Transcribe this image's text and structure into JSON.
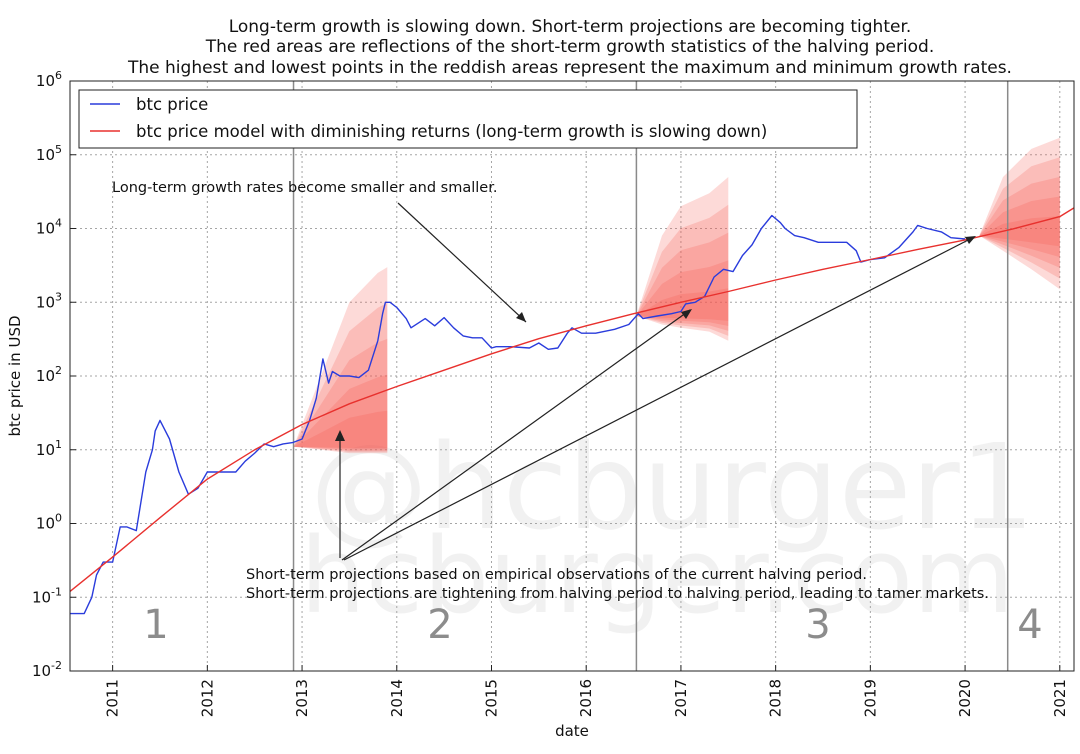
{
  "title_lines": [
    "Long-term growth is slowing down. Short-term projections are becoming tighter.",
    "The red areas are reflections of the short-term growth statistics of the halving period.",
    "The highest and lowest points in the reddish areas represent the maximum and minimum growth rates."
  ],
  "watermark": [
    "@hcburger1",
    "hcburger.com"
  ],
  "annotations": {
    "long_term": "Long-term growth rates become smaller and smaller.",
    "short_term_1": "Short-term projections based on empirical observations of the current halving period.",
    "short_term_2": "Short-term projections are tightening from halving period to halving period, leading to tamer markets."
  },
  "period_labels": [
    "1",
    "2",
    "3",
    "4"
  ],
  "colors": {
    "price": "#2a3cdc",
    "model": "#e8312e",
    "band": "#f4564f"
  },
  "chart_data": {
    "type": "line",
    "title": "Long-term growth is slowing down. Short-term projections are becoming tighter. The red areas are reflections of the short-term growth statistics of the halving period. The highest and lowest points in the reddish areas represent the maximum and minimum growth rates.",
    "xlabel": "date",
    "ylabel": "btc price in USD",
    "y_scale": "log",
    "ylim": [
      0.01,
      1000000
    ],
    "xlim": [
      2010.55,
      2021.15
    ],
    "x_ticks": [
      "2011",
      "2012",
      "2013",
      "2014",
      "2015",
      "2016",
      "2017",
      "2018",
      "2019",
      "2020",
      "2021"
    ],
    "y_ticks": [
      {
        "base": "10",
        "exp": "-2"
      },
      {
        "base": "10",
        "exp": "-1"
      },
      {
        "base": "10",
        "exp": "0"
      },
      {
        "base": "10",
        "exp": "1"
      },
      {
        "base": "10",
        "exp": "2"
      },
      {
        "base": "10",
        "exp": "3"
      },
      {
        "base": "10",
        "exp": "4"
      },
      {
        "base": "10",
        "exp": "5"
      },
      {
        "base": "10",
        "exp": "6"
      }
    ],
    "grid": true,
    "legend_position": "top-left",
    "halving_dates": [
      2012.91,
      2016.53,
      2020.45
    ],
    "series": [
      {
        "name": "btc price",
        "x": [
          2010.55,
          2010.6,
          2010.7,
          2010.78,
          2010.83,
          2010.9,
          2011.0,
          2011.08,
          2011.15,
          2011.25,
          2011.35,
          2011.42,
          2011.45,
          2011.5,
          2011.6,
          2011.7,
          2011.8,
          2011.9,
          2012.0,
          2012.1,
          2012.2,
          2012.3,
          2012.4,
          2012.5,
          2012.6,
          2012.7,
          2012.8,
          2012.9,
          2013.0,
          2013.08,
          2013.15,
          2013.22,
          2013.28,
          2013.32,
          2013.4,
          2013.5,
          2013.6,
          2013.7,
          2013.8,
          2013.85,
          2013.88,
          2013.93,
          2014.0,
          2014.1,
          2014.15,
          2014.3,
          2014.4,
          2014.5,
          2014.6,
          2014.7,
          2014.8,
          2014.9,
          2015.0,
          2015.05,
          2015.2,
          2015.4,
          2015.5,
          2015.6,
          2015.7,
          2015.8,
          2015.85,
          2015.95,
          2016.1,
          2016.3,
          2016.45,
          2016.55,
          2016.6,
          2016.75,
          2016.9,
          2017.0,
          2017.05,
          2017.15,
          2017.25,
          2017.35,
          2017.45,
          2017.55,
          2017.65,
          2017.75,
          2017.85,
          2017.96,
          2018.05,
          2018.1,
          2018.2,
          2018.3,
          2018.45,
          2018.6,
          2018.75,
          2018.85,
          2018.9,
          2019.0,
          2019.15,
          2019.3,
          2019.45,
          2019.5,
          2019.6,
          2019.75,
          2019.85,
          2020.0
        ],
        "y": [
          0.06,
          0.06,
          0.06,
          0.1,
          0.2,
          0.3,
          0.3,
          0.9,
          0.9,
          0.8,
          5,
          10,
          18,
          25,
          14,
          5,
          2.5,
          3,
          5,
          5,
          5,
          5,
          7,
          9,
          12,
          11,
          12,
          12.5,
          14,
          25,
          50,
          170,
          80,
          115,
          100,
          100,
          95,
          120,
          300,
          700,
          1000,
          1000,
          850,
          600,
          450,
          600,
          480,
          620,
          450,
          350,
          330,
          330,
          240,
          250,
          250,
          240,
          280,
          230,
          240,
          380,
          450,
          380,
          380,
          430,
          500,
          700,
          600,
          650,
          700,
          750,
          950,
          1000,
          1200,
          2200,
          2800,
          2600,
          4300,
          6000,
          10000,
          15000,
          12000,
          10000,
          8000,
          7500,
          6500,
          6500,
          6500,
          5000,
          3500,
          3800,
          4000,
          5500,
          9000,
          11000,
          10000,
          9000,
          7500,
          7200
        ]
      },
      {
        "name": "btc price model with diminishing returns (long-term growth is slowing down)",
        "x": [
          2010.55,
          2011,
          2011.5,
          2012,
          2012.5,
          2013,
          2013.5,
          2014,
          2014.5,
          2015,
          2015.5,
          2016,
          2016.5,
          2017,
          2017.5,
          2018,
          2018.5,
          2019,
          2019.5,
          2020,
          2020.5,
          2021,
          2021.15
        ],
        "y": [
          0.12,
          0.35,
          1.2,
          4,
          10,
          22,
          42,
          72,
          120,
          200,
          320,
          480,
          700,
          1000,
          1400,
          2000,
          2800,
          3800,
          5200,
          7000,
          9800,
          14500,
          19000
        ]
      }
    ],
    "projection_bands": [
      {
        "x": [
          2012.91,
          2013.2,
          2013.5,
          2013.8,
          2013.9
        ],
        "low": [
          11,
          10,
          9,
          9,
          9
        ],
        "high": [
          11,
          100,
          1000,
          2500,
          3000
        ]
      },
      {
        "x": [
          2016.53,
          2016.8,
          2017.0,
          2017.3,
          2017.5
        ],
        "low": [
          650,
          500,
          450,
          400,
          300
        ],
        "high": [
          650,
          8000,
          20000,
          30000,
          50000
        ]
      },
      {
        "x": [
          2020.15,
          2020.4,
          2020.7,
          2021.0
        ],
        "low": [
          8000,
          5000,
          2800,
          1500
        ],
        "high": [
          8000,
          50000,
          120000,
          170000
        ]
      }
    ]
  }
}
